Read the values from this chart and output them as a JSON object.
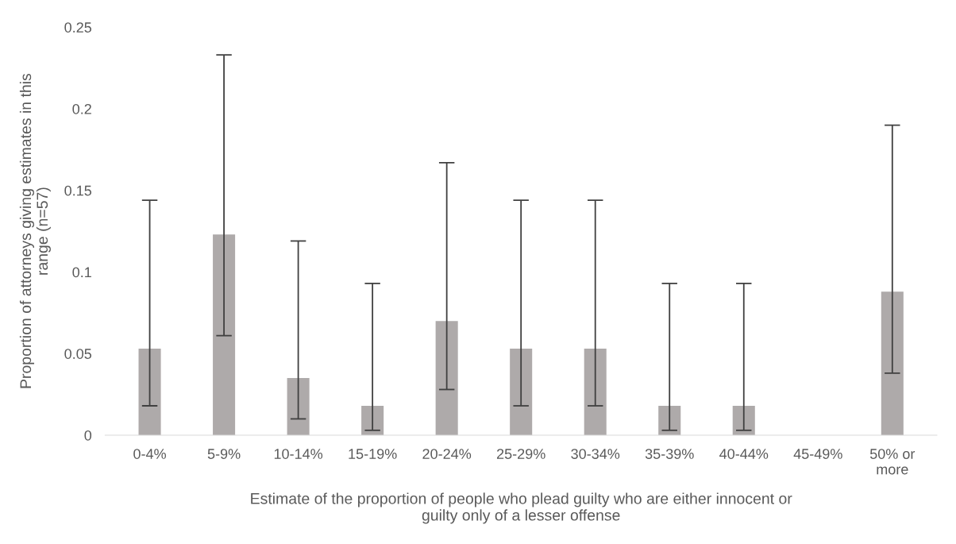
{
  "chart_data": {
    "type": "bar",
    "xlabel": "Estimate of the proportion of people who plead guilty who are either innocent or\nguilty only of a lesser offense",
    "ylabel": "Proportion of attorneys giving estimates in this\nrange (n=57)",
    "categories": [
      "0-4%",
      "5-9%",
      "10-14%",
      "15-19%",
      "20-24%",
      "25-29%",
      "30-34%",
      "35-39%",
      "40-44%",
      "45-49%",
      "50% or\nmore"
    ],
    "values": [
      0.053,
      0.123,
      0.035,
      0.018,
      0.07,
      0.053,
      0.053,
      0.018,
      0.018,
      0,
      0.088
    ],
    "errors": [
      [
        0.018,
        0.144
      ],
      [
        0.061,
        0.233
      ],
      [
        0.01,
        0.119
      ],
      [
        0.003,
        0.093
      ],
      [
        0.028,
        0.167
      ],
      [
        0.018,
        0.144
      ],
      [
        0.018,
        0.144
      ],
      [
        0.003,
        0.093
      ],
      [
        0.003,
        0.093
      ],
      null,
      [
        0.038,
        0.19
      ]
    ],
    "color": "#aeaaaa",
    "ylim": [
      0,
      0.25
    ],
    "yticks": [
      0,
      0.05,
      0.1,
      0.15,
      0.2,
      0.25
    ],
    "grid": false
  }
}
